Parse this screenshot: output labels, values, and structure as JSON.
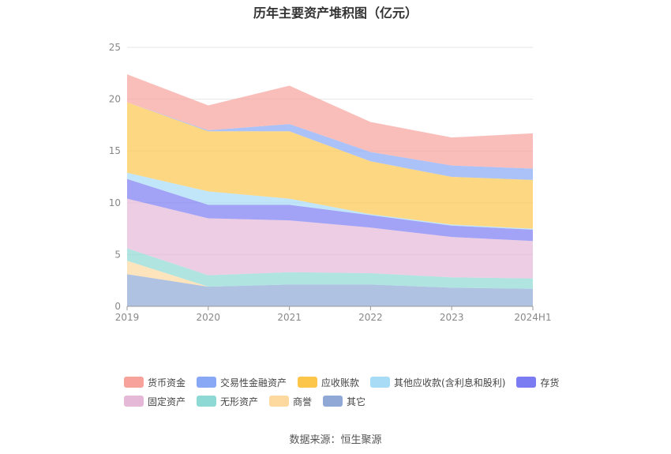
{
  "title": "历年主要资产堆积图（亿元）",
  "source": "数据来源：恒生聚源",
  "chart_data": {
    "type": "area",
    "stacked": true,
    "categories": [
      "2019",
      "2020",
      "2021",
      "2022",
      "2023",
      "2024H1"
    ],
    "ylim": [
      0,
      25
    ],
    "yticks": [
      0,
      5,
      10,
      15,
      20,
      25
    ],
    "grid": true,
    "legend_position": "bottom",
    "series": [
      {
        "name": "其它",
        "color": "#8fa8d6",
        "values": [
          3.1,
          1.9,
          2.1,
          2.1,
          1.8,
          1.7
        ]
      },
      {
        "name": "商誉",
        "color": "#fdd9a0",
        "values": [
          1.3,
          0.0,
          0.0,
          0.0,
          0.0,
          0.0
        ]
      },
      {
        "name": "无形资产",
        "color": "#8ed9d4",
        "values": [
          1.2,
          1.1,
          1.2,
          1.1,
          1.0,
          1.0
        ]
      },
      {
        "name": "固定资产",
        "color": "#e6b8d8",
        "values": [
          4.8,
          5.5,
          5.0,
          4.4,
          3.9,
          3.6
        ]
      },
      {
        "name": "存货",
        "color": "#7b7cf2",
        "values": [
          1.9,
          1.3,
          1.5,
          1.2,
          1.1,
          1.1
        ]
      },
      {
        "name": "其他应收款(含利息和股利)",
        "color": "#a8dcf6",
        "values": [
          0.6,
          1.3,
          0.6,
          0.1,
          0.1,
          0.1
        ]
      },
      {
        "name": "应收账款",
        "color": "#fcc64b",
        "values": [
          6.8,
          5.8,
          6.5,
          5.1,
          4.6,
          4.7
        ]
      },
      {
        "name": "交易性金融资产",
        "color": "#88a8f6",
        "values": [
          0.0,
          0.1,
          0.7,
          0.9,
          1.1,
          1.1
        ]
      },
      {
        "name": "货币资金",
        "color": "#f7a39c",
        "values": [
          2.7,
          2.4,
          3.7,
          2.9,
          2.7,
          3.4
        ]
      }
    ]
  },
  "legend_rows": [
    [
      "货币资金",
      "交易性金融资产",
      "应收账款",
      "其他应收款(含利息和股利)",
      "存货"
    ],
    [
      "固定资产",
      "无形资产",
      "商誉",
      "其它"
    ]
  ]
}
